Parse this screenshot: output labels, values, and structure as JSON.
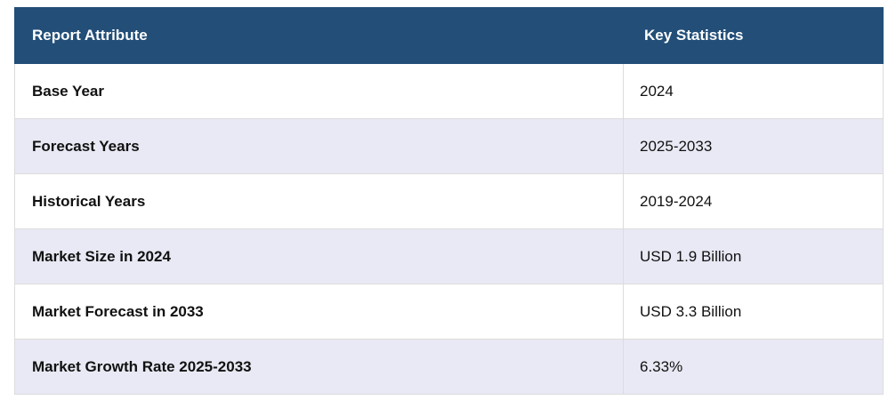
{
  "table": {
    "header": [
      "Report Attribute",
      "Key Statistics"
    ],
    "rows": [
      [
        "Base Year",
        "2024"
      ],
      [
        "Forecast Years",
        "2025-2033"
      ],
      [
        "Historical Years",
        "2019-2024"
      ],
      [
        "Market Size in 2024",
        "USD 1.9 Billion"
      ],
      [
        "Market Forecast in 2033",
        "USD 3.3 Billion"
      ],
      [
        "Market Growth Rate 2025-2033",
        "6.33%"
      ]
    ]
  }
}
